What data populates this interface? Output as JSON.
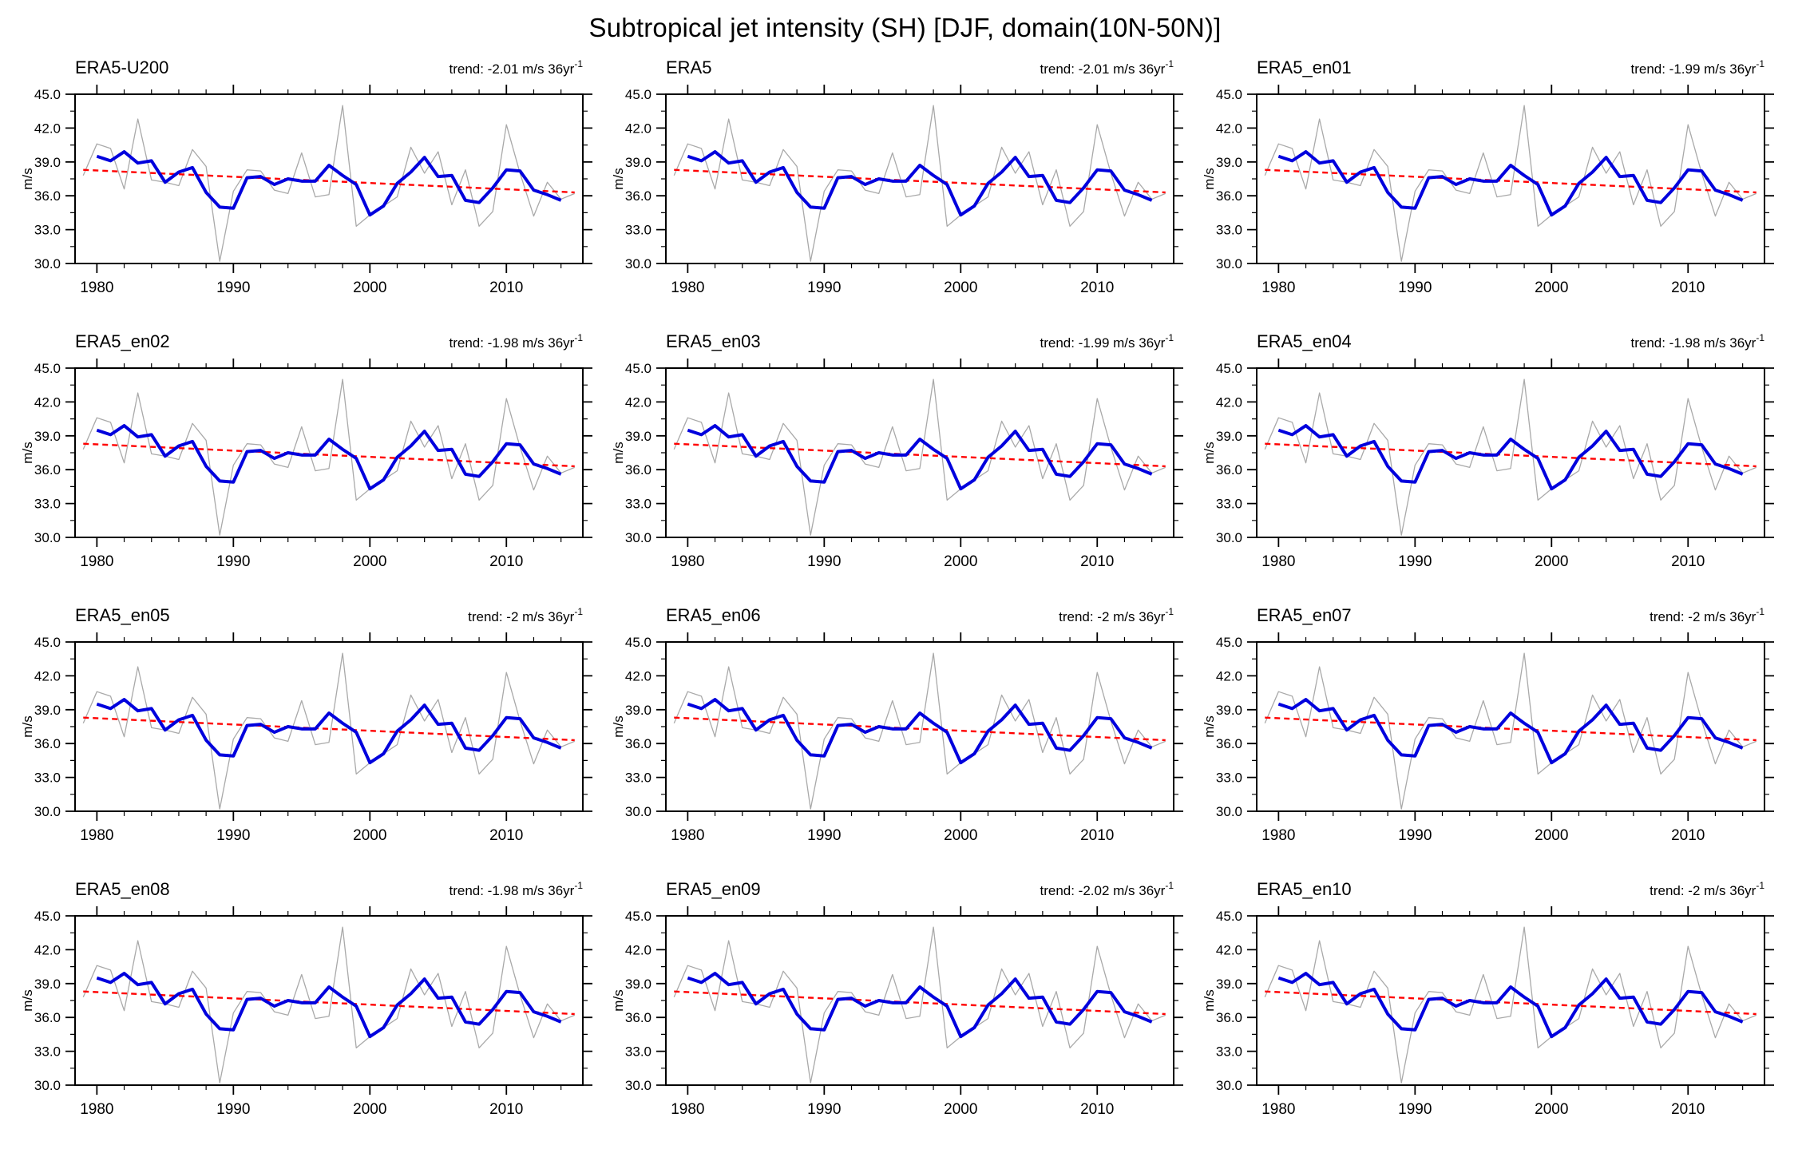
{
  "page_title": "Subtropical jet intensity (SH) [DJF, domain(10N-50N)]",
  "panels": [
    {
      "title": "ERA5-U200",
      "trend_label": "trend: -2.01 m/s 36yr",
      "trend_sup": "-1"
    },
    {
      "title": "ERA5",
      "trend_label": "trend: -2.01 m/s 36yr",
      "trend_sup": "-1"
    },
    {
      "title": "ERA5_en01",
      "trend_label": "trend: -1.99 m/s 36yr",
      "trend_sup": "-1"
    },
    {
      "title": "ERA5_en02",
      "trend_label": "trend: -1.98 m/s 36yr",
      "trend_sup": "-1"
    },
    {
      "title": "ERA5_en03",
      "trend_label": "trend: -1.99 m/s 36yr",
      "trend_sup": "-1"
    },
    {
      "title": "ERA5_en04",
      "trend_label": "trend: -1.98 m/s 36yr",
      "trend_sup": "-1"
    },
    {
      "title": "ERA5_en05",
      "trend_label": "trend: -2 m/s 36yr",
      "trend_sup": "-1"
    },
    {
      "title": "ERA5_en06",
      "trend_label": "trend: -2 m/s 36yr",
      "trend_sup": "-1"
    },
    {
      "title": "ERA5_en07",
      "trend_label": "trend: -2 m/s 36yr",
      "trend_sup": "-1"
    },
    {
      "title": "ERA5_en08",
      "trend_label": "trend: -1.98 m/s 36yr",
      "trend_sup": "-1"
    },
    {
      "title": "ERA5_en09",
      "trend_label": "trend: -2.02 m/s 36yr",
      "trend_sup": "-1"
    },
    {
      "title": "ERA5_en10",
      "trend_label": "trend: -2 m/s 36yr",
      "trend_sup": "-1"
    }
  ],
  "chart_data": {
    "type": "line",
    "title": "Subtropical jet intensity (SH) [DJF, domain(10N-50N)]",
    "xlabel": "",
    "ylabel": "m/s",
    "xlim": [
      1978.4,
      2015.6
    ],
    "ylim": [
      30,
      45
    ],
    "x_major_ticks": [
      1980,
      1990,
      2000,
      2010
    ],
    "x_minor_tick_step_years": 2,
    "y_major_ticks": [
      30,
      33,
      36,
      39,
      42,
      45
    ],
    "y_minor_ticks": [
      31.5,
      34.5,
      37.5,
      40.5,
      43.5
    ],
    "y_tick_labels": [
      "30.0",
      "33.0",
      "36.0",
      "39.0",
      "42.0",
      "45.0"
    ],
    "x_tick_labels": [
      "1980",
      "1990",
      "2000",
      "2010"
    ],
    "grid": false,
    "legend": "none",
    "x": [
      1979,
      1980,
      1981,
      1982,
      1983,
      1984,
      1985,
      1986,
      1987,
      1988,
      1989,
      1990,
      1991,
      1992,
      1993,
      1994,
      1995,
      1996,
      1997,
      1998,
      1999,
      2000,
      2001,
      2002,
      2003,
      2004,
      2005,
      2006,
      2007,
      2008,
      2009,
      2010,
      2011,
      2012,
      2013,
      2014,
      2015
    ],
    "series": [
      {
        "name": "annual-raw",
        "color": "#a9a9a9",
        "width": 1.3,
        "x_start": 1979,
        "values": [
          37.8,
          40.6,
          40.2,
          36.6,
          42.8,
          37.4,
          37.2,
          36.9,
          40.1,
          38.6,
          30.2,
          36.4,
          38.3,
          38.2,
          36.5,
          36.2,
          39.8,
          35.9,
          36.1,
          44.0,
          33.3,
          34.3,
          35.1,
          35.9,
          40.3,
          38.0,
          39.9,
          35.2,
          38.3,
          33.3,
          34.6,
          42.3,
          38.0,
          34.2,
          37.2,
          35.7,
          36.2
        ]
      },
      {
        "name": "3yr-running-mean",
        "color": "#0000dd",
        "width": 4,
        "x_start": 1980,
        "values": [
          39.5,
          39.1,
          39.9,
          38.9,
          39.1,
          37.2,
          38.1,
          38.5,
          36.3,
          35.0,
          34.9,
          37.6,
          37.7,
          37.0,
          37.5,
          37.3,
          37.3,
          38.7,
          37.8,
          37.0,
          34.3,
          35.1,
          37.1,
          38.1,
          39.4,
          37.7,
          37.8,
          35.6,
          35.4,
          36.7,
          38.3,
          38.2,
          36.5,
          36.1,
          35.6
        ]
      },
      {
        "name": "linear-trend",
        "color": "#ff0000",
        "width": 2.4,
        "dash": "7 5",
        "x": [
          1979,
          2015
        ],
        "values": [
          38.3,
          36.3
        ]
      }
    ],
    "panel_trends_m_s_per_36yr": [
      -2.01,
      -2.01,
      -1.99,
      -1.98,
      -1.99,
      -1.98,
      -2,
      -2,
      -2,
      -1.98,
      -2.02,
      -2
    ]
  }
}
